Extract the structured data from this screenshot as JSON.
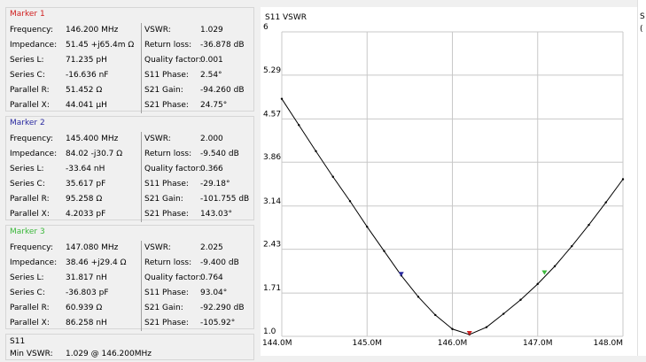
{
  "markers": [
    {
      "title": "Marker 1",
      "title_color": "#d02020",
      "rows": [
        {
          "l1": "Frequency:",
          "v1": "146.200 MHz",
          "l2": "VSWR:",
          "v2": "1.029"
        },
        {
          "l1": "Impedance:",
          "v1": "51.45 +j65.4m Ω",
          "l2": "Return loss:",
          "v2": "-36.878 dB"
        },
        {
          "l1": "Series L:",
          "v1": "71.235 pH",
          "l2": "Quality factor:",
          "v2": "0.001"
        },
        {
          "l1": "Series C:",
          "v1": "-16.636 nF",
          "l2": "S11 Phase:",
          "v2": "2.54°"
        },
        {
          "l1": "Parallel R:",
          "v1": "51.452 Ω",
          "l2": "S21 Gain:",
          "v2": "-94.260 dB"
        },
        {
          "l1": "Parallel X:",
          "v1": "44.041 µH",
          "l2": "S21 Phase:",
          "v2": "24.75°"
        }
      ]
    },
    {
      "title": "Marker 2",
      "title_color": "#2a2aa0",
      "rows": [
        {
          "l1": "Frequency:",
          "v1": "145.400 MHz",
          "l2": "VSWR:",
          "v2": "2.000"
        },
        {
          "l1": "Impedance:",
          "v1": "84.02 -j30.7 Ω",
          "l2": "Return loss:",
          "v2": "-9.540 dB"
        },
        {
          "l1": "Series L:",
          "v1": "-33.64 nH",
          "l2": "Quality factor:",
          "v2": "0.366"
        },
        {
          "l1": "Series C:",
          "v1": "35.617 pF",
          "l2": "S11 Phase:",
          "v2": "-29.18°"
        },
        {
          "l1": "Parallel R:",
          "v1": "95.258 Ω",
          "l2": "S21 Gain:",
          "v2": "-101.755 dB"
        },
        {
          "l1": "Parallel X:",
          "v1": "4.2033 pF",
          "l2": "S21 Phase:",
          "v2": "143.03°"
        }
      ]
    },
    {
      "title": "Marker 3",
      "title_color": "#3cb83c",
      "rows": [
        {
          "l1": "Frequency:",
          "v1": "147.080 MHz",
          "l2": "VSWR:",
          "v2": "2.025"
        },
        {
          "l1": "Impedance:",
          "v1": "38.46 +j29.4 Ω",
          "l2": "Return loss:",
          "v2": "-9.400 dB"
        },
        {
          "l1": "Series L:",
          "v1": "31.817 nH",
          "l2": "Quality factor:",
          "v2": "0.764"
        },
        {
          "l1": "Series C:",
          "v1": "-36.803 pF",
          "l2": "S11 Phase:",
          "v2": "93.04°"
        },
        {
          "l1": "Parallel R:",
          "v1": "60.939 Ω",
          "l2": "S21 Gain:",
          "v2": "-92.290 dB"
        },
        {
          "l1": "Parallel X:",
          "v1": "86.258 nH",
          "l2": "S21 Phase:",
          "v2": "-105.92°"
        }
      ]
    }
  ],
  "s11": {
    "title": "S11",
    "min_label": "Min VSWR:",
    "min_value": "1.029 @ 146.200MHz"
  },
  "right_strip": {
    "line1": "S",
    "line2": "("
  },
  "chart_data": {
    "type": "line",
    "title": "S11 VSWR",
    "x_unit": "MHz",
    "xlim": [
      144.0,
      148.0
    ],
    "ylim": [
      1.0,
      6.0
    ],
    "xticks": [
      {
        "value": 144.0,
        "label": "144.0M"
      },
      {
        "value": 145.0,
        "label": "145.0M"
      },
      {
        "value": 146.0,
        "label": "146.0M"
      },
      {
        "value": 147.0,
        "label": "147.0M"
      },
      {
        "value": 148.0,
        "label": "148.0M"
      }
    ],
    "yticks": [
      {
        "value": 1.0,
        "label": "1.0"
      },
      {
        "value": 1.71,
        "label": "1.71"
      },
      {
        "value": 2.43,
        "label": "2.43"
      },
      {
        "value": 3.14,
        "label": "3.14"
      },
      {
        "value": 3.86,
        "label": "3.86"
      },
      {
        "value": 4.57,
        "label": "4.57"
      },
      {
        "value": 5.29,
        "label": "5.29"
      },
      {
        "value": 6.0,
        "label": "6"
      }
    ],
    "grid": true,
    "line_color": "#000000",
    "series": [
      {
        "x": [
          144.0,
          144.2,
          144.4,
          144.6,
          144.8,
          145.0,
          145.2,
          145.4,
          145.6,
          145.8,
          146.0,
          146.2,
          146.4,
          146.6,
          146.8,
          147.0,
          147.2,
          147.4,
          147.6,
          147.8,
          148.0
        ],
        "y": [
          4.9,
          4.47,
          4.04,
          3.62,
          3.22,
          2.8,
          2.4,
          2.0,
          1.65,
          1.35,
          1.12,
          1.03,
          1.15,
          1.37,
          1.6,
          1.86,
          2.15,
          2.48,
          2.83,
          3.2,
          3.58
        ]
      }
    ],
    "markers": [
      {
        "name": "Marker 1",
        "x": 146.2,
        "y": 1.029,
        "color": "#d02020"
      },
      {
        "name": "Marker 2",
        "x": 145.4,
        "y": 2.0,
        "color": "#2a2aa0"
      },
      {
        "name": "Marker 3",
        "x": 147.08,
        "y": 2.025,
        "color": "#3cb83c"
      }
    ]
  }
}
